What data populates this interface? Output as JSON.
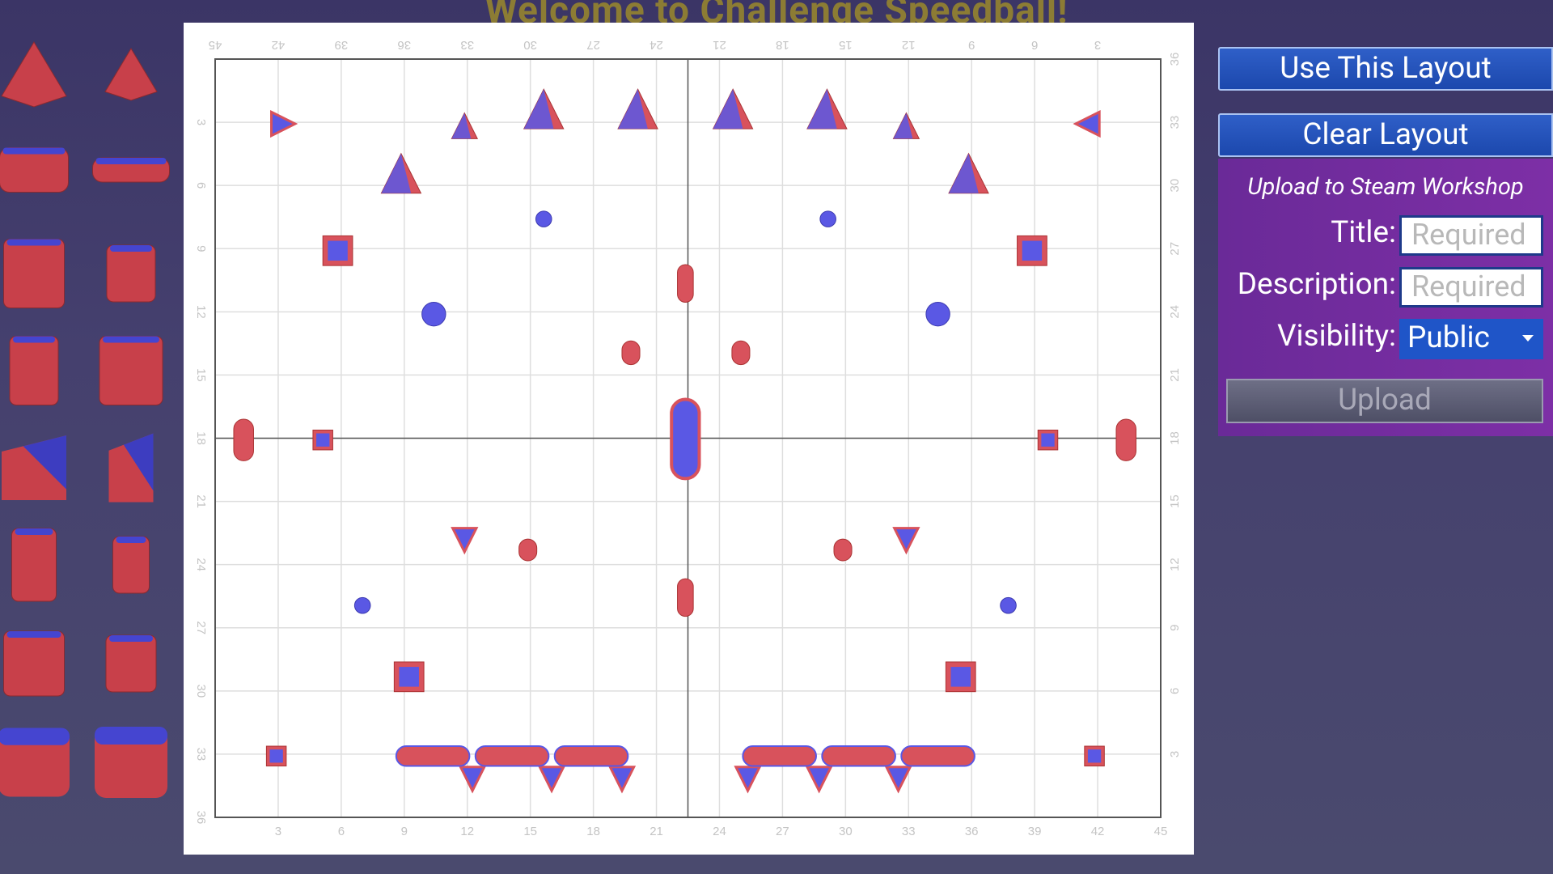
{
  "header": {
    "title": "Welcome to Challenge Speedball!"
  },
  "grid": {
    "bottom_labels": [
      3,
      6,
      9,
      12,
      15,
      18,
      21,
      24,
      27,
      30,
      33,
      36,
      39,
      42,
      45
    ],
    "left_labels": [
      3,
      6,
      9,
      12,
      15,
      18,
      21,
      24,
      27,
      30,
      33,
      36
    ],
    "top_labels": [
      45,
      42,
      39,
      36,
      33,
      30,
      27,
      24,
      21,
      18,
      15,
      12,
      9,
      6,
      3
    ],
    "right_labels": [
      36,
      33,
      30,
      27,
      24,
      21,
      18,
      15,
      12,
      9,
      6,
      3
    ]
  },
  "buttons": {
    "use_layout": "Use This Layout",
    "clear_layout": "Clear Layout",
    "upload": "Upload"
  },
  "workshop": {
    "heading": "Upload to Steam Workshop",
    "title_label": "Title:",
    "title_placeholder": "Required",
    "description_label": "Description:",
    "description_placeholder": "Required",
    "visibility_label": "Visibility:",
    "visibility_value": "Public"
  }
}
